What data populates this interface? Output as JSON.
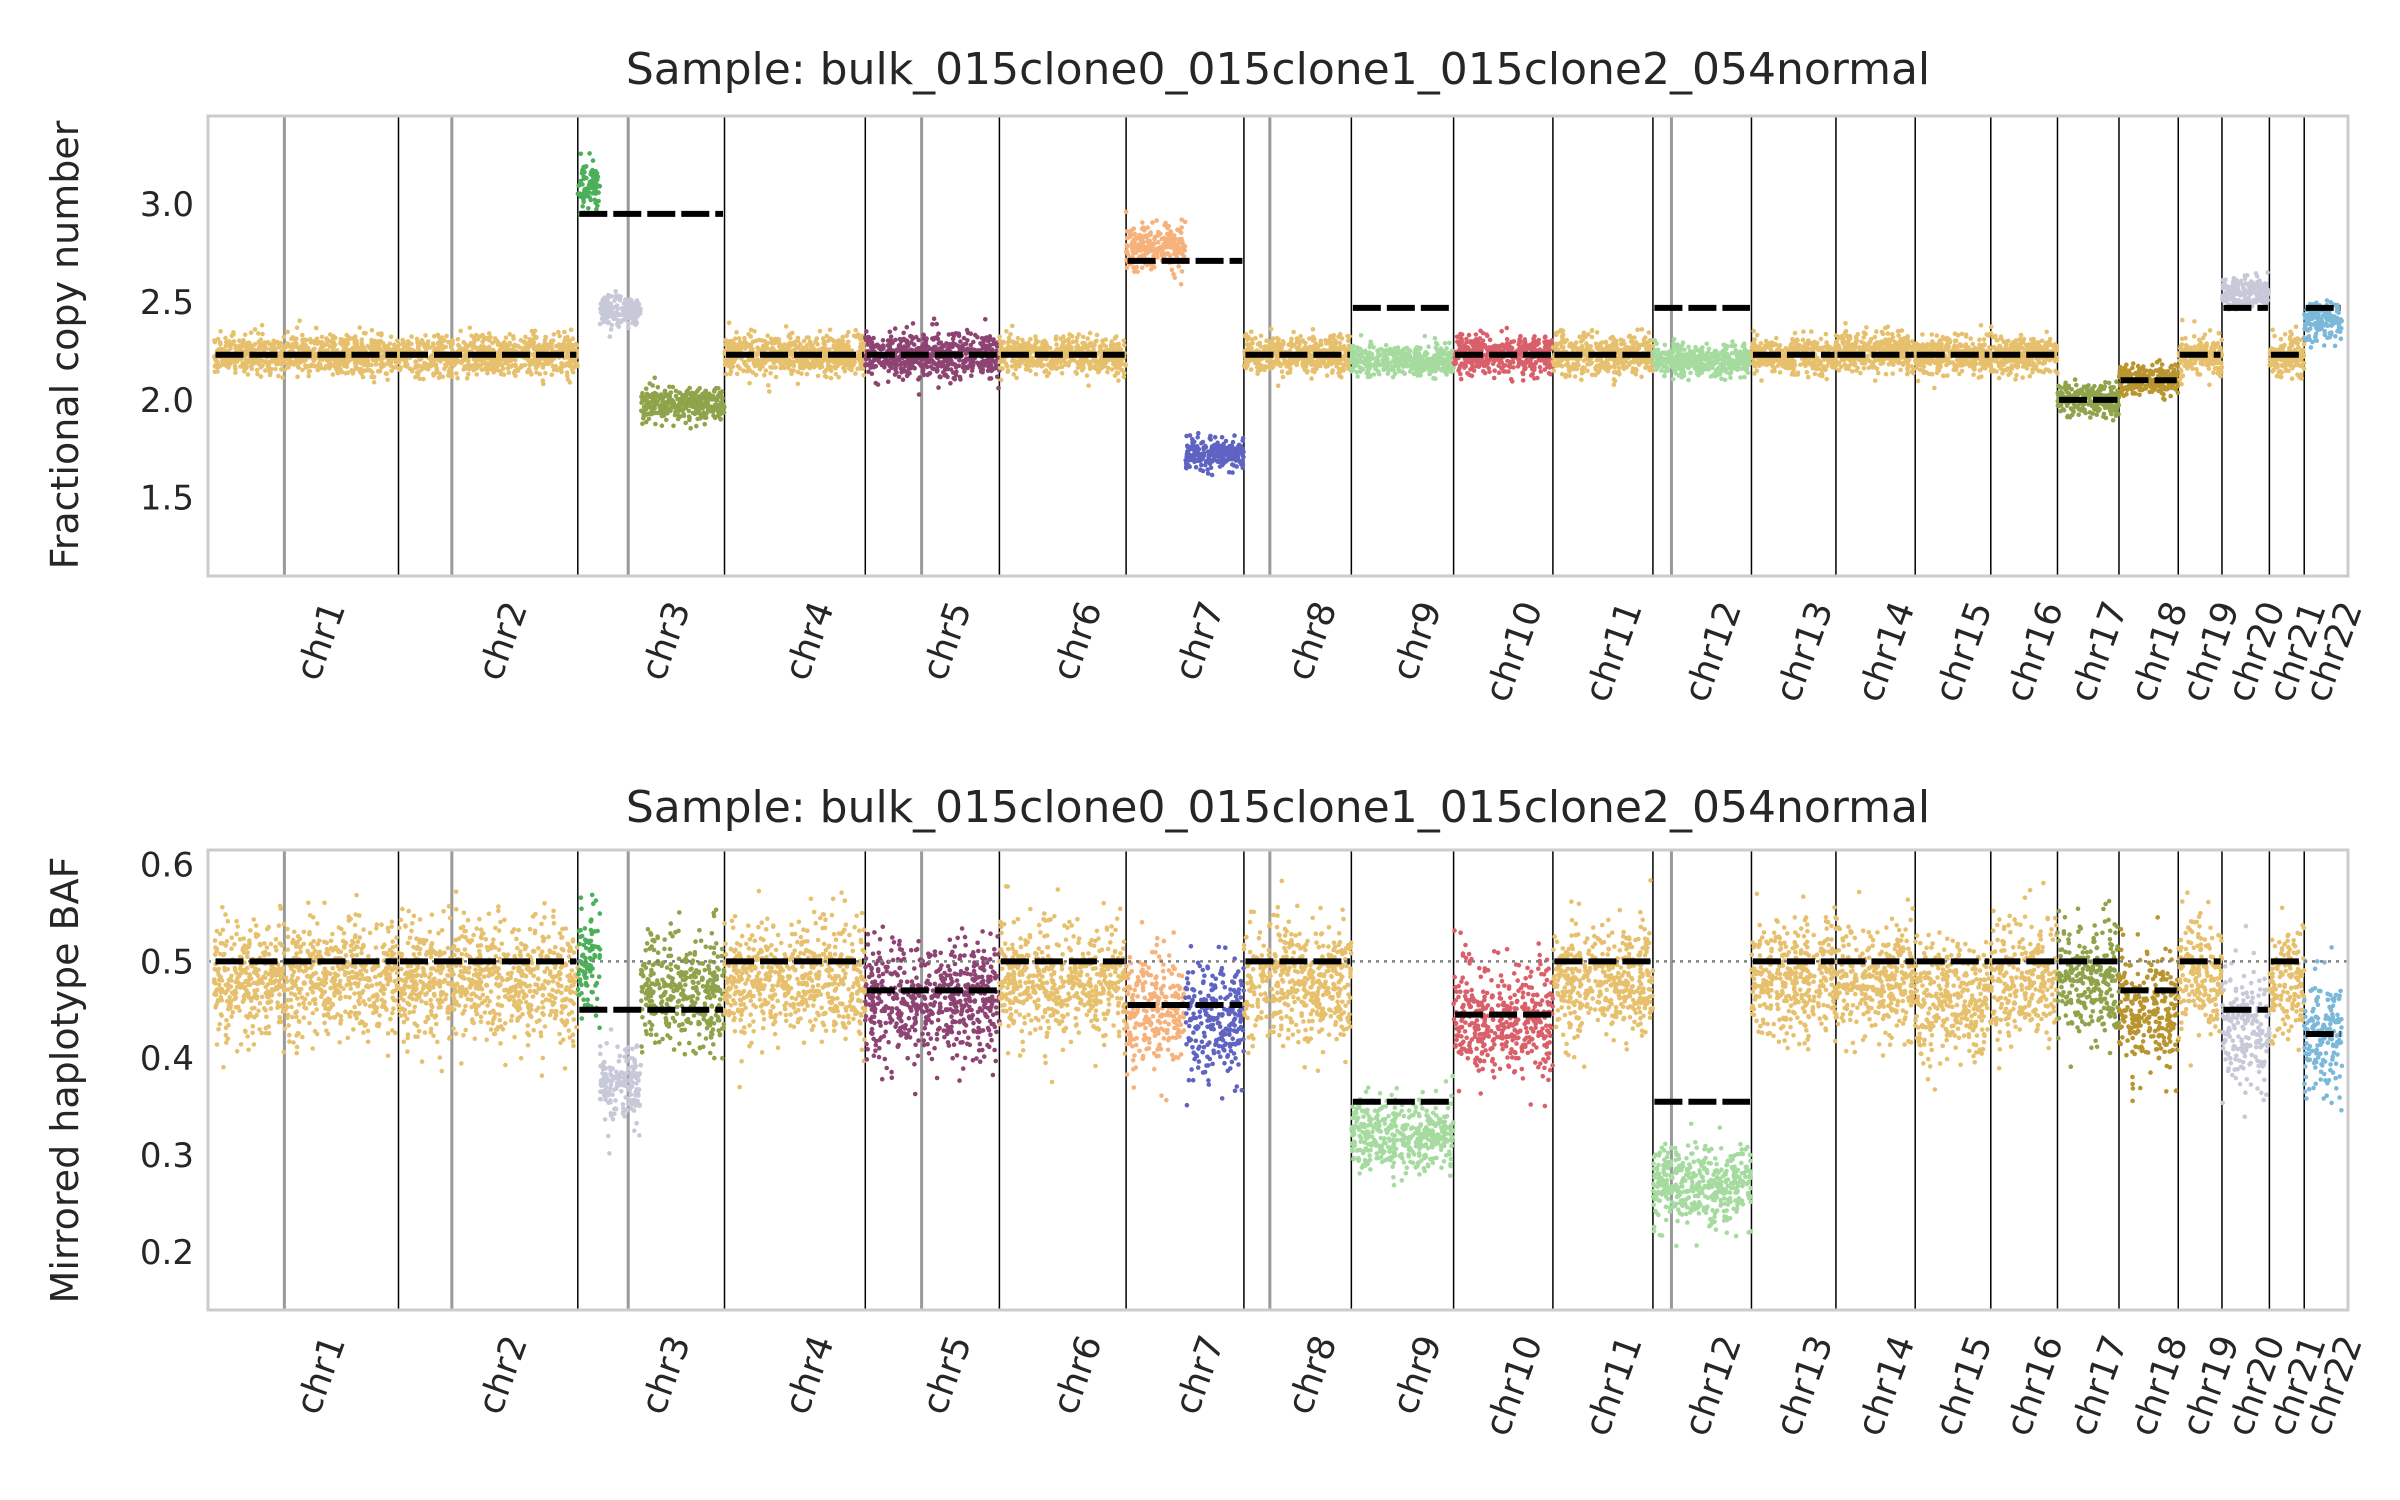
{
  "chart_data": [
    {
      "type": "scatter",
      "title": "Sample: bulk_015clone0_015clone1_015clone2_054normal",
      "ylabel": "Fractional copy number",
      "xlabel": "",
      "ylim": [
        1.1,
        3.45
      ],
      "yticks": [
        "1.5",
        "2.0",
        "2.5",
        "3.0"
      ],
      "grid": false,
      "legend": "none",
      "chromosomes": [
        "chr1",
        "chr2",
        "chr3",
        "chr4",
        "chr5",
        "chr6",
        "chr7",
        "chr8",
        "chr9",
        "chr10",
        "chr11",
        "chr12",
        "chr13",
        "chr14",
        "chr15",
        "chr16",
        "chr17",
        "chr18",
        "chr19",
        "chr20",
        "chr21",
        "chr22"
      ],
      "chrom_lengths_mb": [
        249,
        242,
        198,
        190,
        181,
        171,
        159,
        145,
        138,
        134,
        135,
        133,
        114,
        107,
        102,
        90,
        83,
        80,
        59,
        64,
        47,
        51
      ],
      "segments": [
        {
          "chrom": "chr1",
          "start": 0,
          "end": 249,
          "value": 2.23,
          "color": "#e6c06c",
          "spread": 0.05
        },
        {
          "chrom": "chr2",
          "start": 0,
          "end": 242,
          "value": 2.23,
          "color": "#e6c06c",
          "spread": 0.05
        },
        {
          "chrom": "chr3",
          "start": 0,
          "end": 30,
          "value": 3.08,
          "color": "#4caf5a",
          "spread": 0.06
        },
        {
          "chrom": "chr3",
          "start": 30,
          "end": 85,
          "value": 2.45,
          "color": "#c7c9d8",
          "spread": 0.04
        },
        {
          "chrom": "chr3",
          "start": 85,
          "end": 198,
          "value": 1.98,
          "color": "#8fa34a",
          "spread": 0.04
        },
        {
          "chrom": "chr4",
          "start": 0,
          "end": 190,
          "value": 2.23,
          "color": "#e6c06c",
          "spread": 0.05
        },
        {
          "chrom": "chr5",
          "start": 0,
          "end": 181,
          "value": 2.23,
          "color": "#8d4473",
          "spread": 0.06
        },
        {
          "chrom": "chr6",
          "start": 0,
          "end": 171,
          "value": 2.23,
          "color": "#e6c06c",
          "spread": 0.05
        },
        {
          "chrom": "chr7",
          "start": 0,
          "end": 80,
          "value": 2.78,
          "color": "#f7b27c",
          "spread": 0.06
        },
        {
          "chrom": "chr7",
          "start": 80,
          "end": 159,
          "value": 1.72,
          "color": "#5f63c1",
          "spread": 0.04
        },
        {
          "chrom": "chr8",
          "start": 0,
          "end": 145,
          "value": 2.23,
          "color": "#e6c06c",
          "spread": 0.05
        },
        {
          "chrom": "chr9",
          "start": 0,
          "end": 138,
          "value": 2.2,
          "color": "#a6dba0",
          "spread": 0.04
        },
        {
          "chrom": "chr10",
          "start": 0,
          "end": 134,
          "value": 2.23,
          "color": "#d9606b",
          "spread": 0.05
        },
        {
          "chrom": "chr11",
          "start": 0,
          "end": 135,
          "value": 2.23,
          "color": "#e6c06c",
          "spread": 0.05
        },
        {
          "chrom": "chr12",
          "start": 0,
          "end": 133,
          "value": 2.2,
          "color": "#a6dba0",
          "spread": 0.04
        },
        {
          "chrom": "chr13",
          "start": 0,
          "end": 114,
          "value": 2.23,
          "color": "#e6c06c",
          "spread": 0.05
        },
        {
          "chrom": "chr14",
          "start": 0,
          "end": 107,
          "value": 2.25,
          "color": "#e6c06c",
          "spread": 0.05
        },
        {
          "chrom": "chr15",
          "start": 0,
          "end": 102,
          "value": 2.23,
          "color": "#e6c06c",
          "spread": 0.05
        },
        {
          "chrom": "chr16",
          "start": 0,
          "end": 90,
          "value": 2.23,
          "color": "#e6c06c",
          "spread": 0.05
        },
        {
          "chrom": "chr17",
          "start": 0,
          "end": 83,
          "value": 2.0,
          "color": "#8fa34a",
          "spread": 0.04
        },
        {
          "chrom": "chr18",
          "start": 0,
          "end": 80,
          "value": 2.1,
          "color": "#b8952e",
          "spread": 0.04
        },
        {
          "chrom": "chr19",
          "start": 0,
          "end": 59,
          "value": 2.23,
          "color": "#e6c06c",
          "spread": 0.05
        },
        {
          "chrom": "chr20",
          "start": 0,
          "end": 64,
          "value": 2.55,
          "color": "#c7c9d8",
          "spread": 0.04
        },
        {
          "chrom": "chr21",
          "start": 0,
          "end": 47,
          "value": 2.23,
          "color": "#e6c06c",
          "spread": 0.05
        },
        {
          "chrom": "chr22",
          "start": 0,
          "end": 51,
          "value": 2.4,
          "color": "#7bb8d9",
          "spread": 0.05
        }
      ],
      "expected_lines": [
        {
          "chrom": "chr1",
          "value": 2.23
        },
        {
          "chrom": "chr2",
          "value": 2.23
        },
        {
          "chrom": "chr3",
          "value": 2.95
        },
        {
          "chrom": "chr4",
          "value": 2.23
        },
        {
          "chrom": "chr5",
          "value": 2.23
        },
        {
          "chrom": "chr6",
          "value": 2.23
        },
        {
          "chrom": "chr7",
          "value": 2.71
        },
        {
          "chrom": "chr8",
          "value": 2.23
        },
        {
          "chrom": "chr9",
          "value": 2.47
        },
        {
          "chrom": "chr10",
          "value": 2.23
        },
        {
          "chrom": "chr11",
          "value": 2.23
        },
        {
          "chrom": "chr12",
          "value": 2.47
        },
        {
          "chrom": "chr13",
          "value": 2.23
        },
        {
          "chrom": "chr14",
          "value": 2.23
        },
        {
          "chrom": "chr15",
          "value": 2.23
        },
        {
          "chrom": "chr16",
          "value": 2.23
        },
        {
          "chrom": "chr17",
          "value": 2.0
        },
        {
          "chrom": "chr18",
          "value": 2.1
        },
        {
          "chrom": "chr19",
          "value": 2.23
        },
        {
          "chrom": "chr20",
          "value": 2.47
        },
        {
          "chrom": "chr21",
          "value": 2.23
        },
        {
          "chrom": "chr22",
          "value": 2.47
        }
      ]
    },
    {
      "type": "scatter",
      "title": "Sample: bulk_015clone0_015clone1_015clone2_054normal",
      "ylabel": "Mirrored haplotype BAF",
      "xlabel": "",
      "ylim": [
        0.14,
        0.615
      ],
      "yticks": [
        "0.2",
        "0.3",
        "0.4",
        "0.5",
        "0.6"
      ],
      "reference_line": 0.5,
      "grid": false,
      "legend": "none",
      "chromosomes": [
        "chr1",
        "chr2",
        "chr3",
        "chr4",
        "chr5",
        "chr6",
        "chr7",
        "chr8",
        "chr9",
        "chr10",
        "chr11",
        "chr12",
        "chr13",
        "chr14",
        "chr15",
        "chr16",
        "chr17",
        "chr18",
        "chr19",
        "chr20",
        "chr21",
        "chr22"
      ],
      "chrom_lengths_mb": [
        249,
        242,
        198,
        190,
        181,
        171,
        159,
        145,
        138,
        134,
        135,
        133,
        114,
        107,
        102,
        90,
        83,
        80,
        59,
        64,
        47,
        51
      ],
      "segments": [
        {
          "chrom": "chr1",
          "start": 0,
          "end": 249,
          "value": 0.48,
          "color": "#e6c06c",
          "spread": 0.03
        },
        {
          "chrom": "chr2",
          "start": 0,
          "end": 242,
          "value": 0.48,
          "color": "#e6c06c",
          "spread": 0.03
        },
        {
          "chrom": "chr3",
          "start": 0,
          "end": 30,
          "value": 0.5,
          "color": "#4caf5a",
          "spread": 0.03
        },
        {
          "chrom": "chr3",
          "start": 30,
          "end": 85,
          "value": 0.37,
          "color": "#c7c9d8",
          "spread": 0.02
        },
        {
          "chrom": "chr3",
          "start": 85,
          "end": 198,
          "value": 0.47,
          "color": "#8fa34a",
          "spread": 0.03
        },
        {
          "chrom": "chr4",
          "start": 0,
          "end": 190,
          "value": 0.48,
          "color": "#e6c06c",
          "spread": 0.03
        },
        {
          "chrom": "chr5",
          "start": 0,
          "end": 181,
          "value": 0.46,
          "color": "#8d4473",
          "spread": 0.03
        },
        {
          "chrom": "chr6",
          "start": 0,
          "end": 171,
          "value": 0.48,
          "color": "#e6c06c",
          "spread": 0.03
        },
        {
          "chrom": "chr7",
          "start": 0,
          "end": 80,
          "value": 0.45,
          "color": "#f7b27c",
          "spread": 0.03
        },
        {
          "chrom": "chr7",
          "start": 80,
          "end": 159,
          "value": 0.44,
          "color": "#5f63c1",
          "spread": 0.03
        },
        {
          "chrom": "chr8",
          "start": 0,
          "end": 145,
          "value": 0.48,
          "color": "#e6c06c",
          "spread": 0.03
        },
        {
          "chrom": "chr9",
          "start": 0,
          "end": 138,
          "value": 0.32,
          "color": "#a6dba0",
          "spread": 0.02
        },
        {
          "chrom": "chr10",
          "start": 0,
          "end": 134,
          "value": 0.44,
          "color": "#d9606b",
          "spread": 0.03
        },
        {
          "chrom": "chr11",
          "start": 0,
          "end": 135,
          "value": 0.48,
          "color": "#e6c06c",
          "spread": 0.03
        },
        {
          "chrom": "chr12",
          "start": 0,
          "end": 133,
          "value": 0.27,
          "color": "#a6dba0",
          "spread": 0.02
        },
        {
          "chrom": "chr13",
          "start": 0,
          "end": 114,
          "value": 0.48,
          "color": "#e6c06c",
          "spread": 0.03
        },
        {
          "chrom": "chr14",
          "start": 0,
          "end": 107,
          "value": 0.48,
          "color": "#e6c06c",
          "spread": 0.03
        },
        {
          "chrom": "chr15",
          "start": 0,
          "end": 102,
          "value": 0.46,
          "color": "#e6c06c",
          "spread": 0.03
        },
        {
          "chrom": "chr16",
          "start": 0,
          "end": 90,
          "value": 0.48,
          "color": "#e6c06c",
          "spread": 0.03
        },
        {
          "chrom": "chr17",
          "start": 0,
          "end": 83,
          "value": 0.48,
          "color": "#8fa34a",
          "spread": 0.03
        },
        {
          "chrom": "chr18",
          "start": 0,
          "end": 80,
          "value": 0.45,
          "color": "#b8952e",
          "spread": 0.03
        },
        {
          "chrom": "chr19",
          "start": 0,
          "end": 59,
          "value": 0.48,
          "color": "#e6c06c",
          "spread": 0.03
        },
        {
          "chrom": "chr20",
          "start": 0,
          "end": 64,
          "value": 0.43,
          "color": "#c7c9d8",
          "spread": 0.03
        },
        {
          "chrom": "chr21",
          "start": 0,
          "end": 47,
          "value": 0.48,
          "color": "#e6c06c",
          "spread": 0.03
        },
        {
          "chrom": "chr22",
          "start": 0,
          "end": 51,
          "value": 0.42,
          "color": "#7bb8d9",
          "spread": 0.03
        }
      ],
      "expected_lines": [
        {
          "chrom": "chr1",
          "value": 0.5
        },
        {
          "chrom": "chr2",
          "value": 0.5
        },
        {
          "chrom": "chr3",
          "value": 0.45
        },
        {
          "chrom": "chr4",
          "value": 0.5
        },
        {
          "chrom": "chr5",
          "value": 0.47
        },
        {
          "chrom": "chr6",
          "value": 0.5
        },
        {
          "chrom": "chr7",
          "value": 0.455
        },
        {
          "chrom": "chr8",
          "value": 0.5
        },
        {
          "chrom": "chr9",
          "value": 0.355
        },
        {
          "chrom": "chr10",
          "value": 0.445
        },
        {
          "chrom": "chr11",
          "value": 0.5
        },
        {
          "chrom": "chr12",
          "value": 0.355
        },
        {
          "chrom": "chr13",
          "value": 0.5
        },
        {
          "chrom": "chr14",
          "value": 0.5
        },
        {
          "chrom": "chr15",
          "value": 0.5
        },
        {
          "chrom": "chr16",
          "value": 0.5
        },
        {
          "chrom": "chr17",
          "value": 0.5
        },
        {
          "chrom": "chr18",
          "value": 0.47
        },
        {
          "chrom": "chr19",
          "value": 0.5
        },
        {
          "chrom": "chr20",
          "value": 0.45
        },
        {
          "chrom": "chr21",
          "value": 0.5
        },
        {
          "chrom": "chr22",
          "value": 0.425
        }
      ]
    }
  ]
}
